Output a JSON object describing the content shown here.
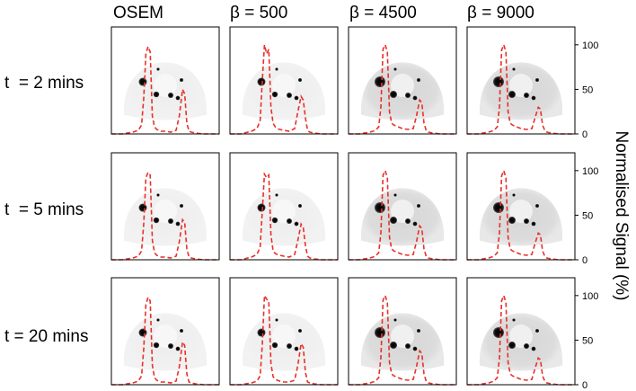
{
  "chart_data": {
    "type": "line",
    "column_titles": [
      "OSEM",
      "β = 500",
      "β = 4500",
      "β = 9000"
    ],
    "row_labels": [
      "t  = 2 mins",
      "t  = 5 mins",
      "t = 20 mins"
    ],
    "ylabel": "Normalised Signal (%)",
    "ylim": [
      0,
      120
    ],
    "yticks": [
      0,
      50,
      100
    ],
    "yticks_labels": [
      "0",
      "50",
      "100"
    ],
    "line_color": "#e8302a",
    "line_style": "dashed",
    "profile_x": [
      0,
      0.1,
      0.2,
      0.25,
      0.28,
      0.3,
      0.32,
      0.34,
      0.36,
      0.38,
      0.4,
      0.42,
      0.44,
      0.46,
      0.5,
      0.55,
      0.6,
      0.63,
      0.66,
      0.68,
      0.7,
      0.72,
      0.74,
      0.78,
      0.85,
      0.95,
      1.0
    ],
    "panels": [
      {
        "row": 0,
        "col": 0,
        "profile_y": [
          0,
          0,
          2,
          4,
          10,
          40,
          90,
          98,
          92,
          20,
          8,
          5,
          4,
          3,
          3,
          2,
          4,
          20,
          50,
          45,
          12,
          3,
          2,
          1,
          0,
          0,
          0
        ]
      },
      {
        "row": 0,
        "col": 1,
        "profile_y": [
          0,
          0,
          3,
          6,
          15,
          60,
          100,
          90,
          95,
          30,
          12,
          8,
          6,
          5,
          4,
          3,
          6,
          25,
          42,
          38,
          18,
          4,
          2,
          1,
          0,
          0,
          0
        ]
      },
      {
        "row": 0,
        "col": 2,
        "profile_y": [
          0,
          0,
          2,
          4,
          8,
          30,
          95,
          100,
          92,
          25,
          12,
          10,
          9,
          8,
          6,
          5,
          6,
          20,
          38,
          35,
          12,
          4,
          2,
          1,
          0,
          0,
          0
        ]
      },
      {
        "row": 0,
        "col": 3,
        "profile_y": [
          0,
          0,
          2,
          4,
          8,
          30,
          94,
          100,
          92,
          25,
          12,
          10,
          9,
          8,
          6,
          5,
          6,
          18,
          30,
          28,
          10,
          4,
          2,
          1,
          0,
          0,
          0
        ]
      },
      {
        "row": 1,
        "col": 0,
        "profile_y": [
          0,
          0,
          2,
          4,
          10,
          40,
          92,
          98,
          95,
          22,
          8,
          5,
          4,
          3,
          3,
          2,
          4,
          20,
          45,
          42,
          12,
          3,
          2,
          1,
          0,
          0,
          0
        ]
      },
      {
        "row": 1,
        "col": 1,
        "profile_y": [
          0,
          0,
          3,
          6,
          14,
          55,
          96,
          92,
          95,
          28,
          10,
          7,
          6,
          5,
          4,
          3,
          6,
          22,
          40,
          36,
          16,
          4,
          2,
          1,
          0,
          0,
          0
        ]
      },
      {
        "row": 1,
        "col": 2,
        "profile_y": [
          0,
          0,
          2,
          4,
          8,
          30,
          95,
          100,
          92,
          25,
          12,
          10,
          9,
          8,
          6,
          5,
          6,
          20,
          38,
          35,
          12,
          4,
          2,
          1,
          0,
          0,
          0
        ]
      },
      {
        "row": 1,
        "col": 3,
        "profile_y": [
          0,
          0,
          2,
          4,
          8,
          30,
          94,
          100,
          92,
          25,
          12,
          10,
          9,
          8,
          6,
          5,
          6,
          18,
          30,
          28,
          10,
          4,
          2,
          1,
          0,
          0,
          0
        ]
      },
      {
        "row": 2,
        "col": 0,
        "profile_y": [
          0,
          0,
          2,
          4,
          10,
          40,
          90,
          98,
          94,
          22,
          8,
          5,
          4,
          3,
          3,
          2,
          4,
          20,
          48,
          44,
          12,
          3,
          2,
          1,
          0,
          0,
          0
        ]
      },
      {
        "row": 2,
        "col": 1,
        "profile_y": [
          0,
          0,
          2,
          4,
          10,
          45,
          100,
          96,
          94,
          24,
          9,
          6,
          5,
          4,
          3,
          3,
          5,
          22,
          46,
          42,
          14,
          3,
          2,
          1,
          0,
          0,
          0
        ]
      },
      {
        "row": 2,
        "col": 2,
        "profile_y": [
          0,
          0,
          2,
          4,
          8,
          30,
          95,
          100,
          92,
          25,
          12,
          10,
          9,
          8,
          6,
          5,
          6,
          20,
          38,
          35,
          12,
          4,
          2,
          1,
          0,
          0,
          0
        ]
      },
      {
        "row": 2,
        "col": 3,
        "profile_y": [
          0,
          0,
          2,
          4,
          8,
          30,
          94,
          100,
          92,
          25,
          12,
          10,
          9,
          8,
          6,
          5,
          6,
          18,
          30,
          28,
          10,
          4,
          2,
          1,
          0,
          0,
          0
        ]
      }
    ]
  }
}
